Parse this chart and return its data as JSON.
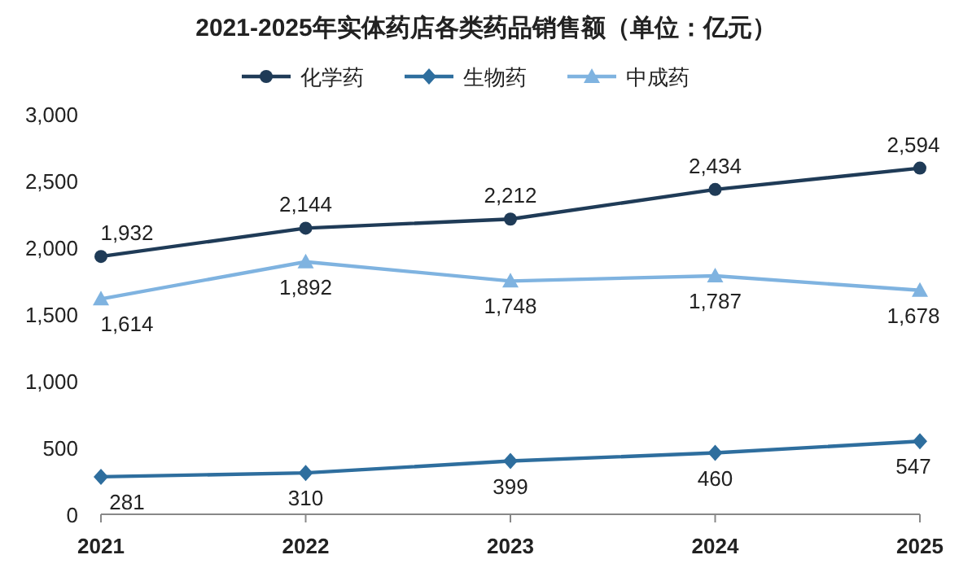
{
  "chart_data": {
    "type": "line",
    "title": "2021-2025年实体药店各类药品销售额（单位：亿元）",
    "categories": [
      "2021",
      "2022",
      "2023",
      "2024",
      "2025"
    ],
    "series": [
      {
        "name": "化学药",
        "color": "#1f3b57",
        "marker": "circle",
        "values": [
          1932,
          2144,
          2212,
          2434,
          2594
        ],
        "value_labels": [
          "1,932",
          "2,144",
          "2,212",
          "2,434",
          "2,594"
        ]
      },
      {
        "name": "生物药",
        "color": "#2e6e9e",
        "marker": "diamond",
        "values": [
          281,
          310,
          399,
          460,
          547
        ],
        "value_labels": [
          "281",
          "310",
          "399",
          "460",
          "547"
        ]
      },
      {
        "name": "中成药",
        "color": "#7fb3e0",
        "marker": "triangle",
        "values": [
          1614,
          1892,
          1748,
          1787,
          1678
        ],
        "value_labels": [
          "1,614",
          "1,892",
          "1,748",
          "1,787",
          "1,678"
        ]
      }
    ],
    "ylim": [
      0,
      3000
    ],
    "yticks": [
      0,
      500,
      {
        "value": 1000,
        "label": "1,000"
      },
      {
        "value": 1500,
        "label": "1,500"
      },
      {
        "value": 2000,
        "label": "2,000"
      },
      {
        "value": 2500,
        "label": "2,500"
      },
      {
        "value": 3000,
        "label": "3,000"
      }
    ],
    "grid": false,
    "legend": "top",
    "line_style": "solid"
  }
}
